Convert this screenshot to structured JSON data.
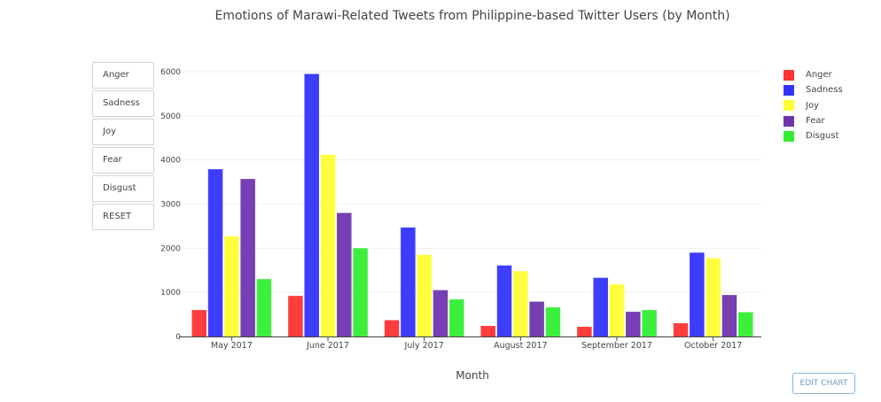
{
  "chart_data": {
    "type": "bar",
    "title": "Emotions of Marawi-Related Tweets from Philippine-based Twitter Users (by Month)",
    "xlabel": "Month",
    "ylabel": "",
    "ylim": [
      0,
      6000
    ],
    "yticks": [
      0,
      1000,
      2000,
      3000,
      4000,
      5000,
      6000
    ],
    "grid": true,
    "legend_position": "top-right",
    "categories": [
      "May 2017",
      "June 2017",
      "July 2017",
      "August 2017",
      "September 2017",
      "October 2017"
    ],
    "series": [
      {
        "name": "Anger",
        "color": "#ff3333",
        "values": [
          600,
          920,
          370,
          240,
          220,
          300
        ]
      },
      {
        "name": "Sadness",
        "color": "#3333ff",
        "values": [
          3790,
          5950,
          2470,
          1610,
          1330,
          1900
        ]
      },
      {
        "name": "Joy",
        "color": "#ffff33",
        "values": [
          2270,
          4120,
          1850,
          1480,
          1180,
          1770
        ]
      },
      {
        "name": "Fear",
        "color": "#7035ae",
        "values": [
          3570,
          2800,
          1050,
          790,
          560,
          940
        ]
      },
      {
        "name": "Disgust",
        "color": "#33ee33",
        "values": [
          1300,
          2000,
          840,
          660,
          600,
          550
        ]
      }
    ]
  },
  "buttons": {
    "anger": "Anger",
    "sadness": "Sadness",
    "joy": "Joy",
    "fear": "Fear",
    "disgust": "Disgust",
    "reset": "RESET"
  },
  "edit_chart_label": "EDIT CHART"
}
